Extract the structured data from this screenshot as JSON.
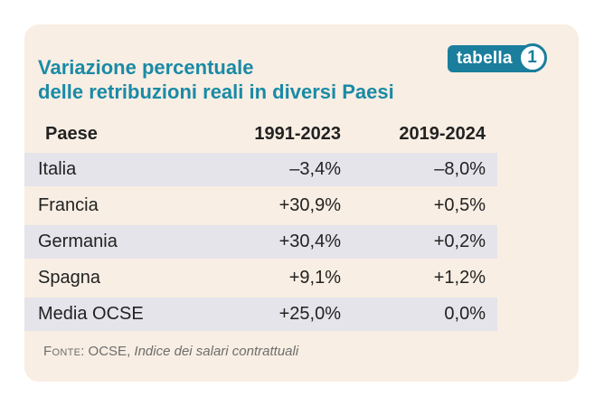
{
  "tag": {
    "label": "tabella",
    "number": "1"
  },
  "title": {
    "line1": "Variazione percentuale",
    "line2": "delle retribuzioni reali in diversi Paesi"
  },
  "table": {
    "headers": [
      "Paese",
      "1991-2023",
      "2019-2024"
    ],
    "rows": [
      [
        "Italia",
        "–3,4%",
        "–8,0%"
      ],
      [
        "Francia",
        "+30,9%",
        "+0,5%"
      ],
      [
        "Germania",
        "+30,4%",
        "+0,2%"
      ],
      [
        "Spagna",
        "+9,1%",
        "+1,2%"
      ],
      [
        "Media OCSE",
        "+25,0%",
        "0,0%"
      ]
    ]
  },
  "source": {
    "label": "Fonte",
    "org": ": OCSE, ",
    "title": "Indice dei salari contrattuali"
  },
  "colors": {
    "accent": "#1a8aa6",
    "tag_bg": "#1a7e9c",
    "card_bg": "#f8eee3",
    "stripe": "#e5e4ea"
  }
}
